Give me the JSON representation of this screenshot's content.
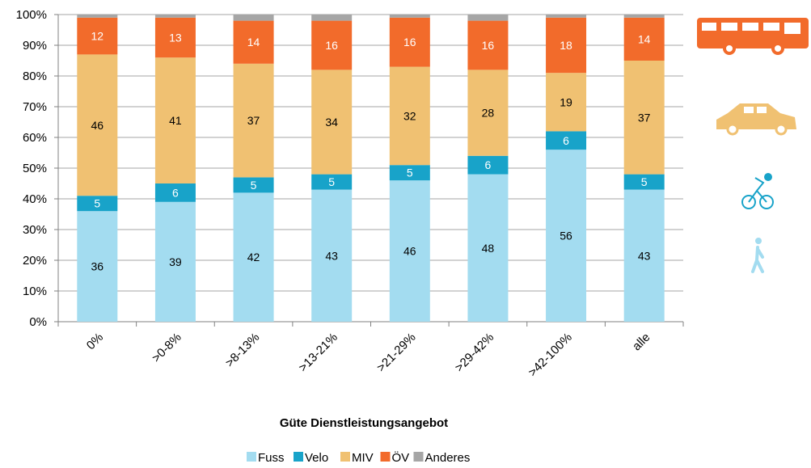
{
  "chart_data": {
    "type": "stacked_bar",
    "x_label": "Güte Dienstleistungsangebot",
    "categories": [
      "0%",
      ">0-8%",
      ">8-13%",
      ">13-21%",
      ">21-29%",
      ">29-42%",
      ">42-100%",
      "alle"
    ],
    "series": [
      {
        "name": "Fuss",
        "color": "#a3dcf0",
        "label_color": "#000000",
        "values": [
          36,
          39,
          42,
          43,
          46,
          48,
          56,
          43
        ]
      },
      {
        "name": "Velo",
        "color": "#18a3c9",
        "label_color": "#ffffff",
        "values": [
          5,
          6,
          5,
          5,
          5,
          6,
          6,
          5
        ]
      },
      {
        "name": "MIV",
        "color": "#f0c172",
        "label_color": "#000000",
        "values": [
          46,
          41,
          37,
          34,
          32,
          28,
          19,
          37
        ]
      },
      {
        "name": "ÖV",
        "color": "#f26b2b",
        "label_color": "#ffffff",
        "values": [
          12,
          13,
          14,
          16,
          16,
          16,
          18,
          14
        ]
      },
      {
        "name": "Anderes",
        "color": "#a6a6a6",
        "values": [
          1,
          1,
          2,
          2,
          1,
          2,
          1,
          1
        ]
      }
    ],
    "ylim": [
      0,
      100
    ],
    "yticks": [
      {
        "value": 0,
        "label": "0%"
      },
      {
        "value": 10,
        "label": "10%"
      },
      {
        "value": 20,
        "label": "20%"
      },
      {
        "value": 30,
        "label": "30%"
      },
      {
        "value": 40,
        "label": "40%"
      },
      {
        "value": 50,
        "label": "50%"
      },
      {
        "value": 60,
        "label": "60%"
      },
      {
        "value": 70,
        "label": "70%"
      },
      {
        "value": 80,
        "label": "80%"
      },
      {
        "value": 90,
        "label": "90%"
      },
      {
        "value": 100,
        "label": "100%"
      }
    ],
    "grid": true,
    "legend": "bottom"
  }
}
